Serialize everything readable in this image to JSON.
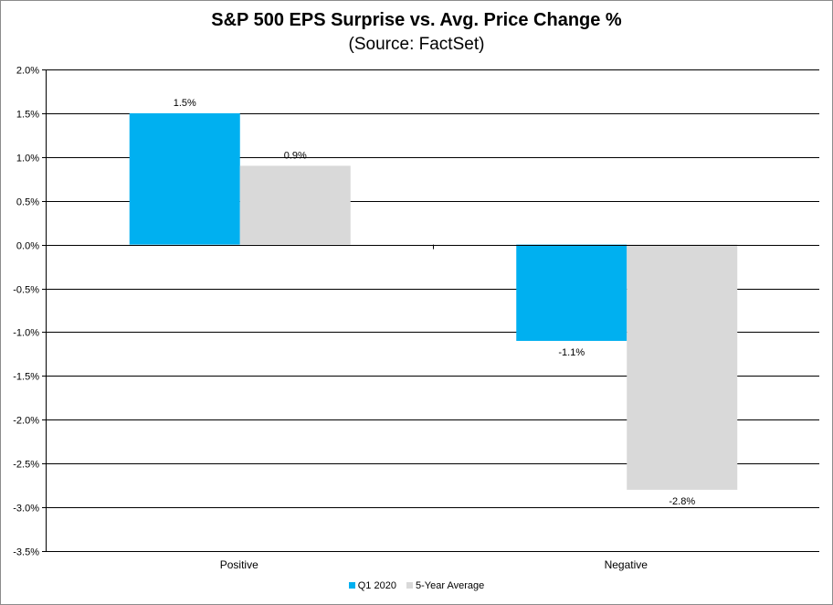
{
  "chart_data": {
    "type": "bar",
    "title": "S&P 500 EPS Surprise vs. Avg. Price Change %",
    "subtitle": "(Source: FactSet)",
    "categories": [
      "Positive",
      "Negative"
    ],
    "series": [
      {
        "name": "Q1 2020",
        "values": [
          1.5,
          -1.1
        ],
        "labels": [
          "1.5%",
          "-1.1%"
        ],
        "color": "#00b0f0"
      },
      {
        "name": "5-Year Average",
        "values": [
          0.9,
          -2.8
        ],
        "labels": [
          "0.9%",
          "-2.8%"
        ],
        "color": "#d9d9d9"
      }
    ],
    "ylim": [
      -3.5,
      2.0
    ],
    "yticks": [
      2.0,
      1.5,
      1.0,
      0.5,
      0.0,
      -0.5,
      -1.0,
      -1.5,
      -2.0,
      -2.5,
      -3.0,
      -3.5
    ],
    "ytick_labels": [
      "2.0%",
      "1.5%",
      "1.0%",
      "0.5%",
      "0.0%",
      "-0.5%",
      "-1.0%",
      "-1.5%",
      "-2.0%",
      "-2.5%",
      "-3.0%",
      "-3.5%"
    ],
    "grid": true,
    "legend": "bottom"
  }
}
